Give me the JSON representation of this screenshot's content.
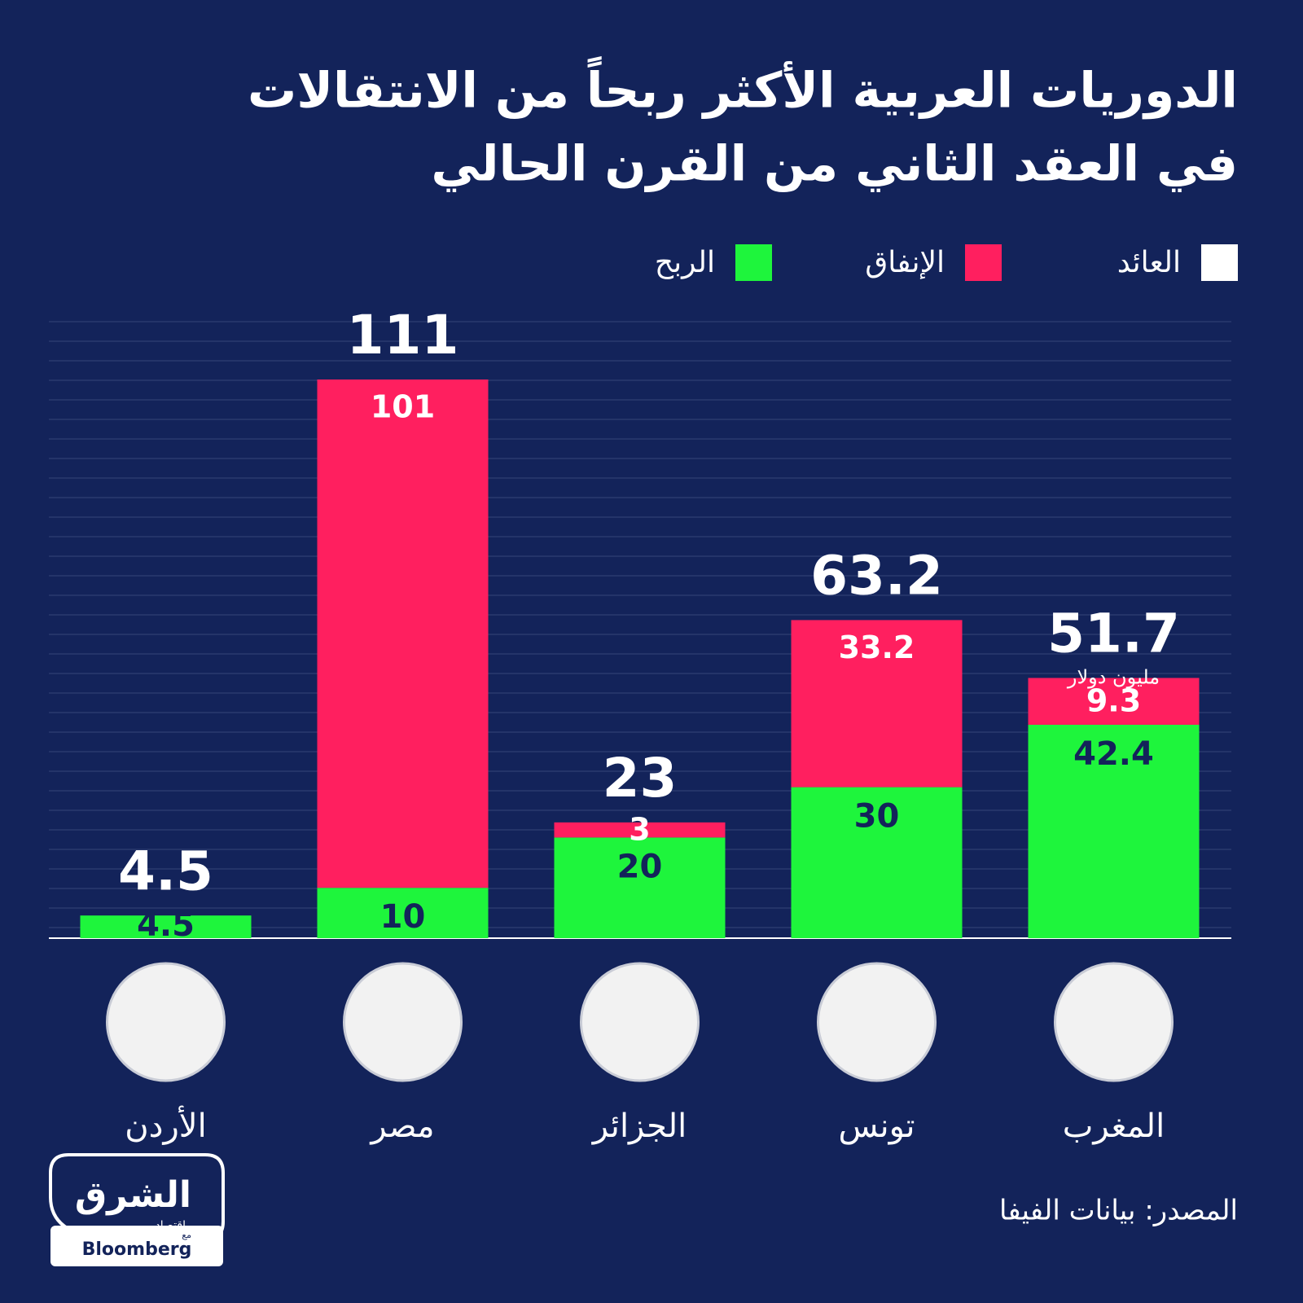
{
  "chart_data": {
    "type": "bar",
    "title_lines": [
      "الدوريات العربية الأكثر ربحاً من الانتقالات",
      "في العقد الثاني من القرن الحالي"
    ],
    "categories": [
      "الأردن",
      "مصر",
      "الجزائر",
      "تونس",
      "المغرب"
    ],
    "series": [
      {
        "name": "العائد",
        "color": "#ffffff",
        "values": [
          4.5,
          111,
          23,
          63.2,
          51.7
        ]
      },
      {
        "name": "الإنفاق",
        "color": "#ff1f5f",
        "values": [
          null,
          101,
          3,
          33.2,
          9.3
        ]
      },
      {
        "name": "الربح",
        "color": "#1ef53c",
        "values": [
          4.5,
          10,
          20,
          30,
          42.4
        ]
      }
    ],
    "unit_annotation": "مليون دولار",
    "grid": true,
    "source": "المصدر: بيانات الفيفا",
    "logo": {
      "brand": "الشرق",
      "sub": "اقتصاد",
      "with": "مع",
      "partner": "Bloomberg"
    }
  }
}
